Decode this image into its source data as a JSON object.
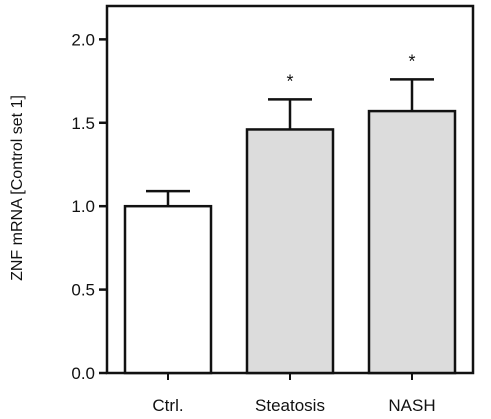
{
  "chart_data": {
    "type": "bar",
    "categories": [
      "Ctrl.",
      "Steatosis",
      "NASH"
    ],
    "values": [
      1.0,
      1.46,
      1.57
    ],
    "error_upper": [
      0.09,
      0.18,
      0.19
    ],
    "significance": [
      "",
      "*",
      "*"
    ],
    "bar_colors": [
      "#ffffff",
      "#dcdcdc",
      "#dcdcdc"
    ],
    "ylabel": "ZNF mRNA [Control set 1]",
    "ylim": [
      0,
      2.2
    ],
    "yticks": [
      0.0,
      0.5,
      1.0,
      1.5,
      2.0
    ],
    "ytick_labels": [
      "0.0",
      "0.5",
      "1.0",
      "1.5",
      "2.0"
    ],
    "grid": false,
    "legend": "none"
  }
}
